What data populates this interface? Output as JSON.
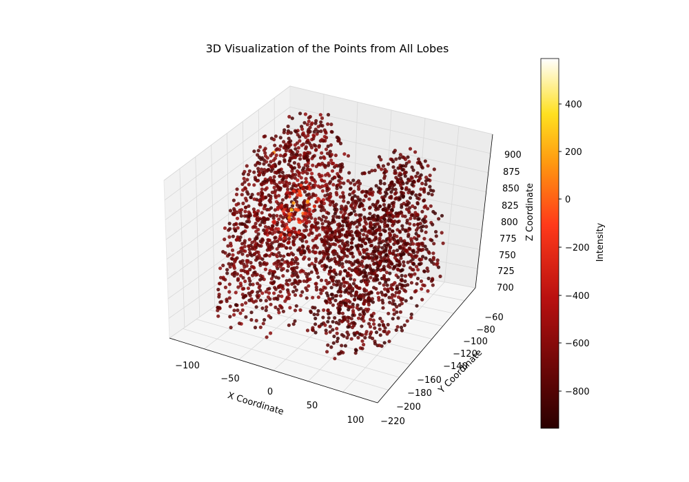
{
  "chart_data": {
    "type": "scatter3d",
    "title": "3D Visualization of the Points from All Lobes",
    "xlabel": "X Coordinate",
    "ylabel": "Y Coordinate",
    "zlabel": "Z Coordinate",
    "x_ticks": [
      "−100",
      "−50",
      "0",
      "50",
      "100"
    ],
    "y_ticks": [
      "−60",
      "−80",
      "−100",
      "−120",
      "−140",
      "−160",
      "−180",
      "−200",
      "−220"
    ],
    "z_ticks": [
      "900",
      "875",
      "850",
      "825",
      "800",
      "775",
      "750",
      "725",
      "700"
    ],
    "colorbar": {
      "label": "Intensity",
      "ticks": [
        "400",
        "200",
        "0",
        "−200",
        "−400",
        "−600",
        "−800"
      ],
      "range": [
        -950,
        580
      ],
      "colormap": "hot"
    },
    "grid": true,
    "clusters": [
      {
        "name": "",
        "x_range": [
          -100,
          -10
        ],
        "y_range": [
          -200,
          -60
        ],
        "z_range": [
          700,
          905
        ],
        "intensity_mean": -700,
        "hotspot_intensity": 450
      },
      {
        "name": "",
        "x_range": [
          10,
          100
        ],
        "y_range": [
          -200,
          -60
        ],
        "z_range": [
          700,
          890
        ],
        "intensity_mean": -750
      }
    ],
    "outliers": [
      {
        "x": -120,
        "y": -60,
        "z": 790,
        "intensity": 100
      }
    ]
  }
}
